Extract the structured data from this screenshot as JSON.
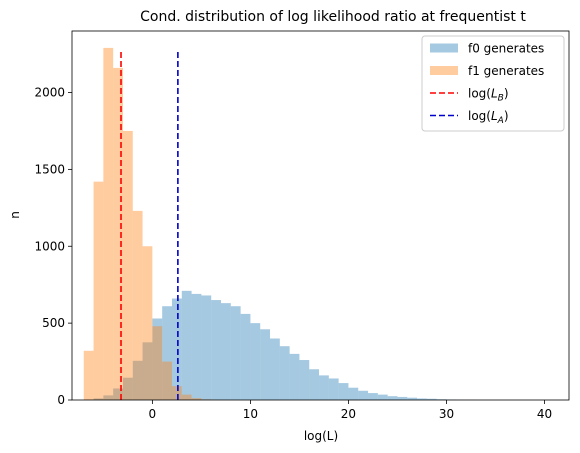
{
  "chart_data": {
    "type": "bar",
    "title": "Cond. distribution of log likelihood ratio at frequentist  t",
    "xlabel": "log(L)",
    "ylabel": "n",
    "xlim": [
      -8.2,
      42.5
    ],
    "ylim": [
      0,
      2400
    ],
    "xticks": [
      0,
      10,
      20,
      30,
      40
    ],
    "yticks": [
      0,
      500,
      1000,
      1500,
      2000
    ],
    "grid": false,
    "legend_position": "top-right",
    "bin_width": 1.0,
    "series": [
      {
        "name": "f0 generates",
        "color": "#1f77b4",
        "alpha": 0.4,
        "bin_starts": [
          -7,
          -6,
          -5,
          -4,
          -3,
          -2,
          -1,
          0,
          1,
          2,
          3,
          4,
          5,
          6,
          7,
          8,
          9,
          10,
          11,
          12,
          13,
          14,
          15,
          16,
          17,
          18,
          19,
          20,
          21,
          22,
          23,
          24,
          25,
          26,
          27,
          28,
          29,
          30,
          31,
          32
        ],
        "counts": [
          2,
          10,
          30,
          75,
          145,
          255,
          375,
          530,
          610,
          660,
          710,
          690,
          680,
          650,
          630,
          610,
          560,
          500,
          460,
          400,
          350,
          300,
          260,
          200,
          160,
          140,
          110,
          80,
          60,
          45,
          35,
          25,
          20,
          15,
          10,
          8,
          5,
          3,
          2,
          1
        ]
      },
      {
        "name": "f1 generates",
        "color": "#ff7f0e",
        "alpha": 0.4,
        "bin_starts": [
          -7,
          -6,
          -5,
          -4,
          -3,
          -2,
          -1,
          0,
          1,
          2,
          3,
          4,
          5,
          6
        ],
        "counts": [
          320,
          1420,
          2290,
          2160,
          1750,
          1230,
          1000,
          480,
          250,
          90,
          35,
          12,
          4,
          1
        ]
      }
    ],
    "vlines": [
      {
        "name": "log(L_B)",
        "label_base": "log(",
        "label_sym": "L",
        "label_sub": "B",
        "label_end": ")",
        "x": -3.2,
        "ymax": 2280,
        "color": "#ff0000"
      },
      {
        "name": "log(L_A)",
        "label_base": "log(",
        "label_sym": "L",
        "label_sub": "A",
        "label_end": ")",
        "x": 2.6,
        "ymax": 2280,
        "color": "#0000cc"
      }
    ]
  }
}
